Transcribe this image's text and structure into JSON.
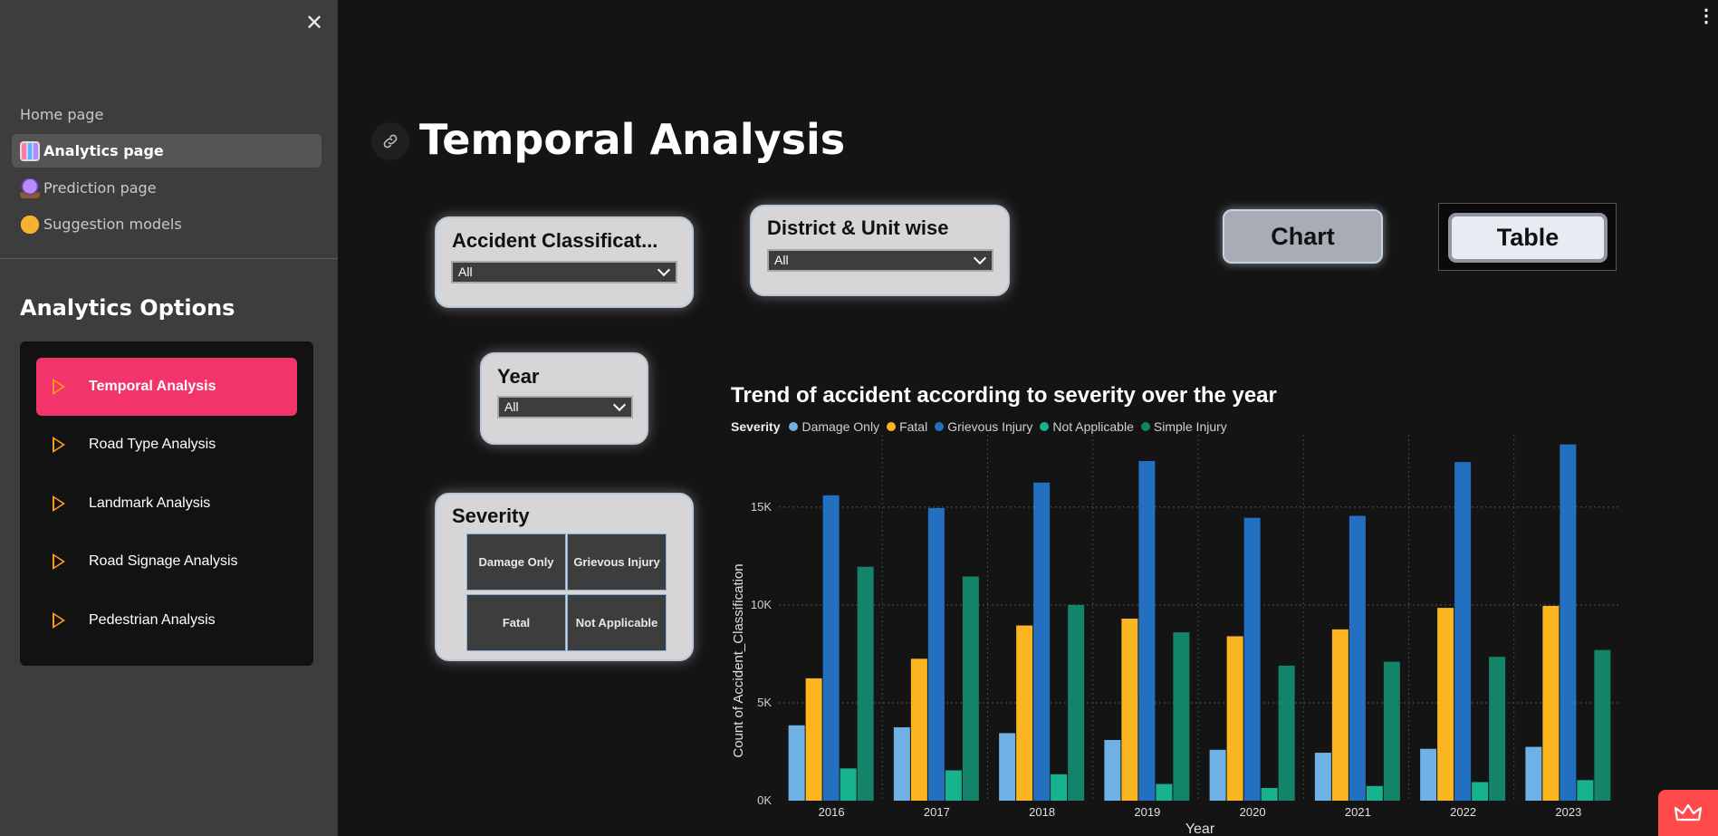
{
  "sidebar": {
    "close_label": "✕",
    "nav": [
      {
        "label": "Home page"
      },
      {
        "label": "Analytics page"
      },
      {
        "label": "Prediction page"
      },
      {
        "label": "Suggestion models"
      }
    ],
    "options_title": "Analytics Options",
    "options": [
      {
        "label": "Temporal Analysis"
      },
      {
        "label": "Road Type Analysis"
      },
      {
        "label": "Landmark Analysis"
      },
      {
        "label": "Road Signage Analysis"
      },
      {
        "label": "Pedestrian Analysis"
      }
    ]
  },
  "main": {
    "title": "Temporal Analysis",
    "filters": {
      "accident_classification": {
        "label": "Accident Classificat...",
        "value": "All"
      },
      "district_unit": {
        "label": "District & Unit wise",
        "value": "All"
      },
      "year": {
        "label": "Year",
        "value": "All"
      },
      "severity": {
        "label": "Severity",
        "options": [
          "Damage Only",
          "Grievous Injury",
          "Fatal",
          "Not Applicable"
        ]
      }
    },
    "buttons": {
      "chart": "Chart",
      "table": "Table"
    }
  },
  "chart_data": {
    "type": "bar",
    "title": "Trend of accident according to severity over the year",
    "legend_title": "Severity",
    "xlabel": "Year",
    "ylabel": "Count of Accident_Classification",
    "ylim": [
      0,
      18000
    ],
    "yticks": [
      "0K",
      "5K",
      "10K",
      "15K"
    ],
    "ytick_values": [
      0,
      5000,
      10000,
      15000
    ],
    "categories": [
      "2016",
      "2017",
      "2018",
      "2019",
      "2020",
      "2021",
      "2022",
      "2023"
    ],
    "series": [
      {
        "name": "Damage Only",
        "color": "#6fb1e4",
        "values": [
          3850,
          3750,
          3450,
          3100,
          2600,
          2450,
          2650,
          2750
        ]
      },
      {
        "name": "Fatal",
        "color": "#fbb521",
        "values": [
          6250,
          7250,
          8950,
          9300,
          8400,
          8750,
          9850,
          9950
        ]
      },
      {
        "name": "Grievous Injury",
        "color": "#2470c0",
        "values": [
          15600,
          14950,
          16250,
          17350,
          14450,
          14550,
          17300,
          18200
        ]
      },
      {
        "name": "Not Applicable",
        "color": "#17b38f",
        "values": [
          1650,
          1550,
          1350,
          850,
          650,
          750,
          950,
          1050
        ]
      },
      {
        "name": "Simple Injury",
        "color": "#138369",
        "values": [
          11950,
          11450,
          10000,
          8600,
          6900,
          7100,
          7350,
          7700
        ]
      }
    ],
    "grid": true,
    "legend_position": "top-left"
  }
}
